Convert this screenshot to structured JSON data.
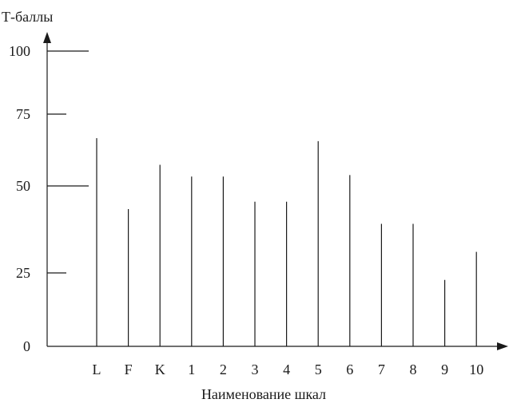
{
  "chart_data": {
    "type": "bar",
    "ylabel": "Т-баллы",
    "xlabel": "Наименование шкал",
    "categories": [
      "L",
      "F",
      "K",
      "1",
      "2",
      "3",
      "4",
      "5",
      "6",
      "7",
      "8",
      "9",
      "10"
    ],
    "values": [
      70.5,
      46.5,
      61.5,
      57.5,
      57.5,
      49,
      49,
      69.5,
      58,
      41.5,
      41.5,
      22.5,
      32
    ],
    "y_ticks": [
      "0",
      "25",
      "50",
      "75",
      "100"
    ],
    "y_tick_values": [
      0,
      25,
      50,
      75,
      100
    ],
    "ylim": [
      0,
      100
    ],
    "grid": false,
    "legend": "none",
    "color": "#1a1a1a"
  }
}
